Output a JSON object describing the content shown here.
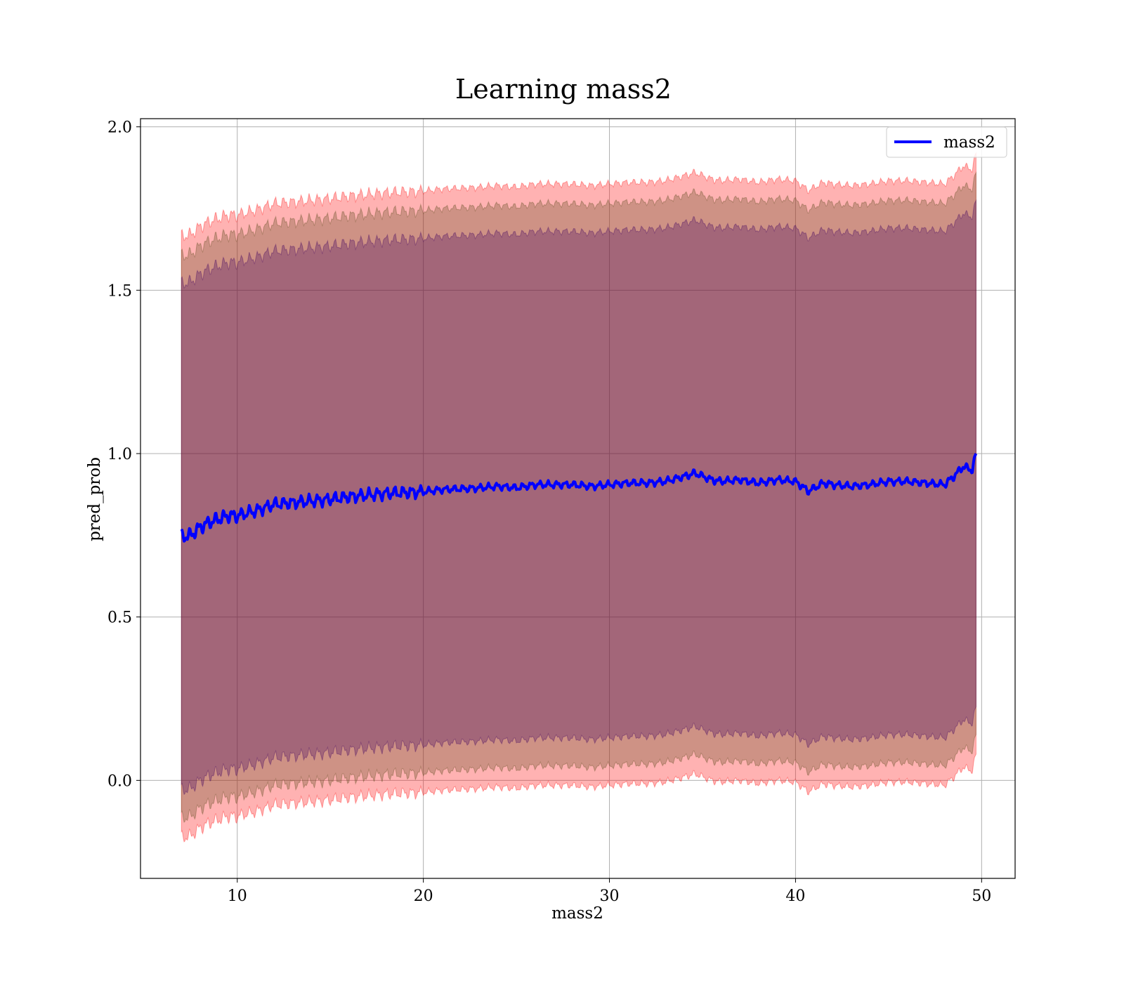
{
  "chart_data": {
    "type": "line",
    "title": "Learning mass2",
    "xlabel": "mass2",
    "ylabel": "pred_prob",
    "xlim": [
      4.8,
      51.8
    ],
    "ylim": [
      -0.3,
      2.025
    ],
    "xticks": [
      10,
      20,
      30,
      40,
      50
    ],
    "yticks": [
      0.0,
      0.5,
      1.0,
      1.5,
      2.0
    ],
    "xtick_labels": [
      "10",
      "20",
      "30",
      "40",
      "50"
    ],
    "ytick_labels": [
      "0.0",
      "0.5",
      "1.0",
      "1.5",
      "2.0"
    ],
    "grid": true,
    "legend": {
      "position": "top-right",
      "entries": [
        "mass2"
      ]
    },
    "series": [
      {
        "name": "mass2",
        "color": "#0000ff",
        "x": [
          7.0,
          7.5,
          8.0,
          8.5,
          9.0,
          9.5,
          10.0,
          11.0,
          12.0,
          13.0,
          14.0,
          15.0,
          16.0,
          17.0,
          18.0,
          19.0,
          20.0,
          21.0,
          22.0,
          23.0,
          24.0,
          25.0,
          26.0,
          27.0,
          28.0,
          29.0,
          30.0,
          31.0,
          32.0,
          33.0,
          34.0,
          34.6,
          35.5,
          36.0,
          37.0,
          38.0,
          39.0,
          40.0,
          40.7,
          41.5,
          42.0,
          43.0,
          44.0,
          45.0,
          46.0,
          47.0,
          48.0,
          48.5,
          49.0,
          49.5,
          49.7
        ],
        "values": [
          0.745,
          0.75,
          0.775,
          0.79,
          0.8,
          0.81,
          0.81,
          0.825,
          0.845,
          0.85,
          0.855,
          0.86,
          0.868,
          0.873,
          0.878,
          0.881,
          0.883,
          0.89,
          0.892,
          0.895,
          0.9,
          0.895,
          0.905,
          0.905,
          0.905,
          0.9,
          0.905,
          0.91,
          0.91,
          0.915,
          0.93,
          0.94,
          0.92,
          0.915,
          0.92,
          0.91,
          0.92,
          0.915,
          0.885,
          0.91,
          0.905,
          0.9,
          0.905,
          0.915,
          0.915,
          0.91,
          0.905,
          0.93,
          0.96,
          0.95,
          1.0
        ]
      }
    ],
    "bands": [
      {
        "color": "#ff0000",
        "alpha": 0.3,
        "spread": 0.92
      },
      {
        "color": "#5c4a1e",
        "alpha": 0.3,
        "spread": 0.86
      },
      {
        "color": "#400060",
        "alpha": 0.3,
        "spread": 0.775
      }
    ]
  }
}
